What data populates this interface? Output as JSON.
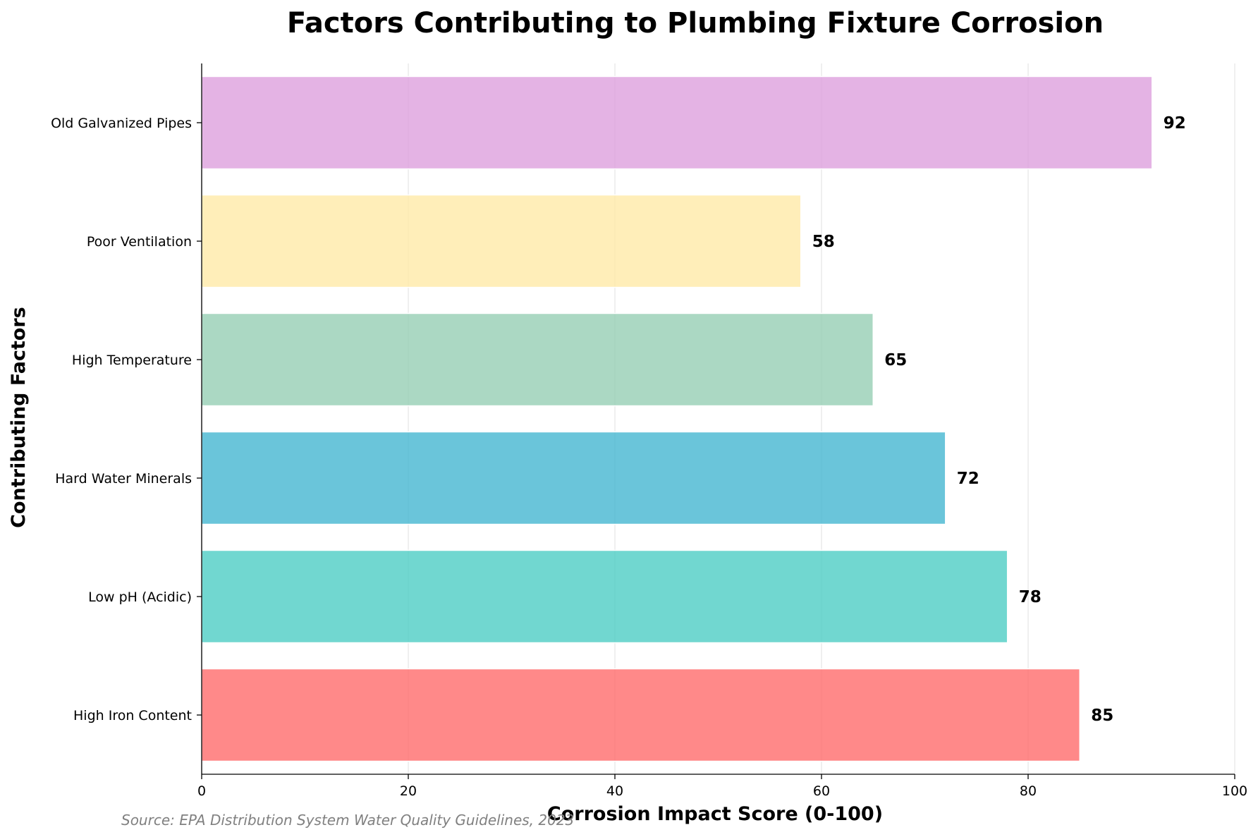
{
  "chart_data": {
    "type": "bar",
    "orientation": "horizontal",
    "title": "Factors Contributing to Plumbing Fixture Corrosion",
    "xlabel": "Corrosion Impact Score (0-100)",
    "ylabel": "Contributing Factors",
    "categories": [
      "High Iron Content",
      "Low pH (Acidic)",
      "Hard Water Minerals",
      "High Temperature",
      "Poor Ventilation",
      "Old Galvanized Pipes"
    ],
    "values": [
      85,
      78,
      72,
      65,
      58,
      92
    ],
    "colors": [
      "#FF6B6B",
      "#4ECDC4",
      "#45B7D1",
      "#96CEB4",
      "#FFEAA7",
      "#DDA0DD"
    ],
    "xlim": [
      0,
      100
    ],
    "xticks": [
      0,
      20,
      40,
      60,
      80,
      100
    ],
    "grid": "vertical",
    "legend": "none"
  },
  "source_note": "Source: EPA Distribution System Water Quality Guidelines, 2023"
}
